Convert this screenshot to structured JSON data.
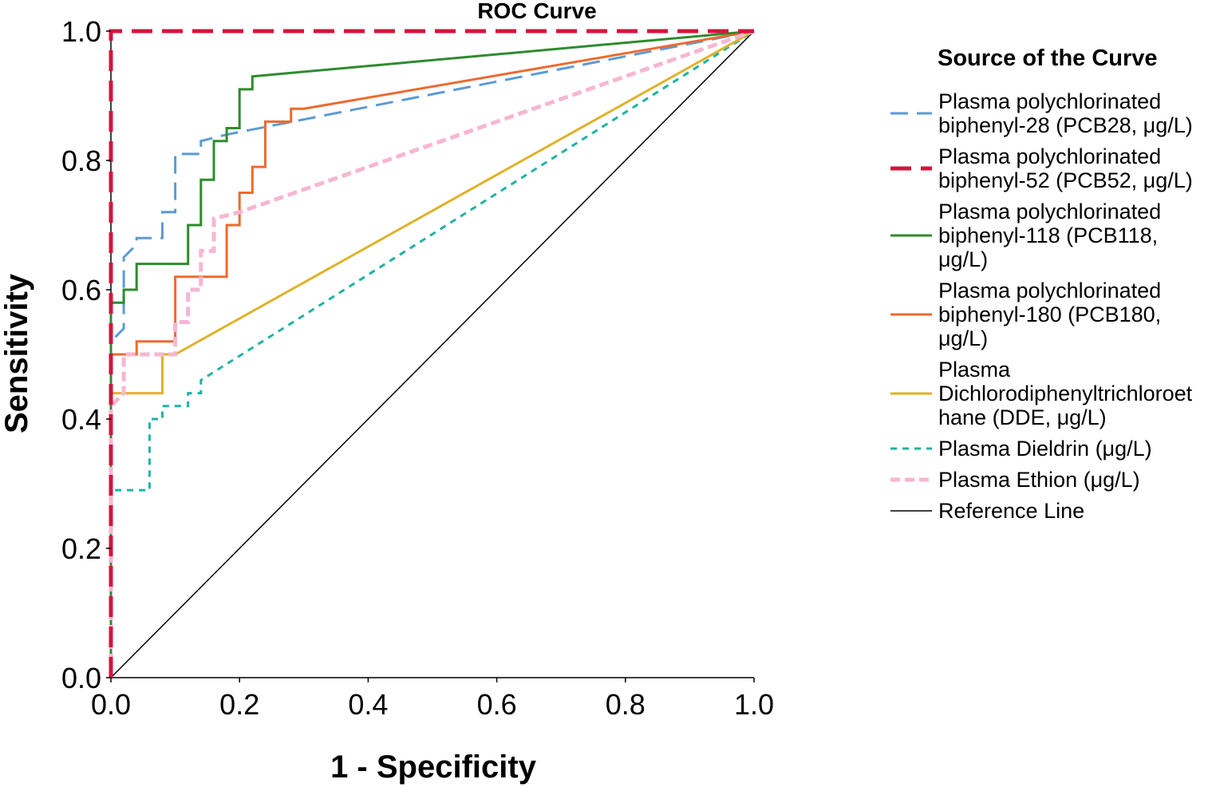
{
  "chart_data": {
    "type": "line",
    "title": "ROC Curve",
    "xlabel": "1 - Specificity",
    "ylabel": "Sensitivity",
    "xlim": [
      0,
      1
    ],
    "ylim": [
      0,
      1
    ],
    "xticks": [
      "0.0",
      "0.2",
      "0.4",
      "0.6",
      "0.8",
      "1.0"
    ],
    "yticks": [
      "0.0",
      "0.2",
      "0.4",
      "0.6",
      "0.8",
      "1.0"
    ],
    "grid": false,
    "legend_title": "Source of the Curve",
    "legend_position": "right",
    "series": [
      {
        "name": "Plasma polychlorinated biphenyl-28 (PCB28, μg/L)",
        "legend_lines": [
          "Plasma polychlorinated",
          "biphenyl-28 (PCB28, μg/L)"
        ],
        "color": "#5b9bd5",
        "dash": "22,11",
        "x": [
          0,
          0,
          0.02,
          0.02,
          0.04,
          0.04,
          0.08,
          0.08,
          0.1,
          0.1,
          0.14,
          0.14,
          0.18,
          1.0
        ],
        "y": [
          0,
          0.52,
          0.54,
          0.65,
          0.67,
          0.68,
          0.68,
          0.72,
          0.72,
          0.81,
          0.81,
          0.83,
          0.84,
          1.0
        ]
      },
      {
        "name": "Plasma polychlorinated biphenyl-52 (PCB52, μg/L)",
        "legend_lines": [
          "Plasma polychlorinated",
          "biphenyl-52 (PCB52, μg/L)"
        ],
        "color": "#d4143c",
        "dash": "26,12",
        "x": [
          0,
          0,
          1.0
        ],
        "y": [
          0,
          1.0,
          1.0
        ]
      },
      {
        "name": "Plasma polychlorinated biphenyl-118 (PCB118, μg/L)",
        "legend_lines": [
          "Plasma polychlorinated",
          "biphenyl-118 (PCB118,",
          "μg/L)"
        ],
        "color": "#2e8b2e",
        "dash": "",
        "x": [
          0,
          0,
          0.02,
          0.02,
          0.04,
          0.04,
          0.06,
          0.06,
          0.12,
          0.12,
          0.14,
          0.14,
          0.16,
          0.16,
          0.18,
          0.18,
          0.2,
          0.2,
          0.22,
          0.22,
          1.0
        ],
        "y": [
          0,
          0.58,
          0.58,
          0.6,
          0.6,
          0.64,
          0.64,
          0.64,
          0.64,
          0.7,
          0.7,
          0.77,
          0.77,
          0.83,
          0.83,
          0.85,
          0.85,
          0.91,
          0.91,
          0.93,
          1.0
        ]
      },
      {
        "name": "Plasma polychlorinated biphenyl-180 (PCB180, μg/L)",
        "legend_lines": [
          "Plasma polychlorinated",
          "biphenyl-180 (PCB180,",
          "μg/L)"
        ],
        "color": "#ed6a2e",
        "dash": "",
        "x": [
          0,
          0,
          0.04,
          0.04,
          0.1,
          0.1,
          0.18,
          0.18,
          0.2,
          0.2,
          0.22,
          0.22,
          0.24,
          0.24,
          0.28,
          0.28,
          0.3,
          1.0
        ],
        "y": [
          0,
          0.5,
          0.5,
          0.52,
          0.52,
          0.62,
          0.62,
          0.7,
          0.7,
          0.75,
          0.75,
          0.79,
          0.79,
          0.86,
          0.86,
          0.88,
          0.88,
          1.0
        ]
      },
      {
        "name": "Plasma Dichlorodiphenyltrichloroethane (DDE, μg/L)",
        "legend_lines": [
          "Plasma",
          "Dichlorodiphenyltrichloroet",
          "hane (DDE, μg/L)"
        ],
        "color": "#e0b22a",
        "dash": "",
        "x": [
          0,
          0,
          0.08,
          0.08,
          0.1,
          1.0
        ],
        "y": [
          0,
          0.44,
          0.44,
          0.5,
          0.5,
          1.0
        ]
      },
      {
        "name": "Plasma Dieldrin (μg/L)",
        "legend_lines": [
          "Plasma Dieldrin (μg/L)"
        ],
        "color": "#1fb3a3",
        "dash": "8,7",
        "x": [
          0,
          0,
          0.06,
          0.06,
          0.08,
          0.08,
          0.12,
          0.12,
          0.14,
          0.14,
          1.0
        ],
        "y": [
          0,
          0.29,
          0.29,
          0.4,
          0.4,
          0.42,
          0.42,
          0.44,
          0.44,
          0.46,
          1.0
        ]
      },
      {
        "name": "Plasma Ethion (μg/L)",
        "legend_lines": [
          "Plasma Ethion (μg/L)"
        ],
        "color": "#f7b6d2",
        "dash": "12,6",
        "x": [
          0,
          0,
          0.02,
          0.02,
          0.1,
          0.1,
          0.12,
          0.12,
          0.14,
          0.14,
          0.16,
          0.16,
          0.2,
          1.0
        ],
        "y": [
          0,
          0.42,
          0.44,
          0.5,
          0.5,
          0.55,
          0.55,
          0.6,
          0.6,
          0.66,
          0.66,
          0.71,
          0.72,
          1.0
        ]
      },
      {
        "name": "Reference Line",
        "legend_lines": [
          "Reference Line"
        ],
        "color": "#000000",
        "dash": "",
        "x": [
          0,
          1.0
        ],
        "y": [
          0,
          1.0
        ]
      }
    ]
  }
}
